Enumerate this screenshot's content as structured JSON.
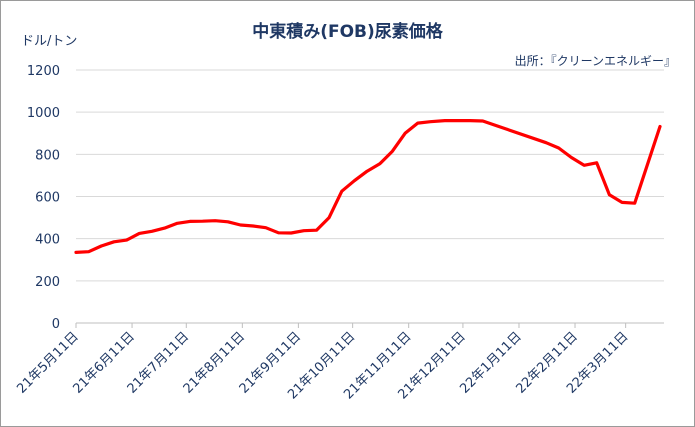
{
  "chart_data": {
    "type": "line",
    "title": "中東積み(FOB)尿素価格",
    "y_unit": "ドル/トン",
    "source": "出所：『クリーンエネルギー』",
    "ylim": [
      0,
      1200
    ],
    "yticks": [
      0,
      200,
      400,
      600,
      800,
      1000,
      1200
    ],
    "xticks": [
      "21年5月11日",
      "21年6月11日",
      "21年7月11日",
      "21年8月11日",
      "21年9月11日",
      "21年10月11日",
      "21年11月11日",
      "21年12月11日",
      "22年1月11日",
      "22年2月11日",
      "22年3月11日"
    ],
    "grid": true,
    "legend": "none",
    "series": [
      {
        "color": "#ff0000",
        "points": [
          [
            "2021-05-11",
            335
          ],
          [
            "2021-05-18",
            338
          ],
          [
            "2021-05-25",
            365
          ],
          [
            "2021-06-01",
            385
          ],
          [
            "2021-06-08",
            393
          ],
          [
            "2021-06-15",
            425
          ],
          [
            "2021-06-22",
            435
          ],
          [
            "2021-06-29",
            450
          ],
          [
            "2021-07-06",
            473
          ],
          [
            "2021-07-13",
            482
          ],
          [
            "2021-07-20",
            483
          ],
          [
            "2021-07-27",
            485
          ],
          [
            "2021-08-03",
            480
          ],
          [
            "2021-08-10",
            465
          ],
          [
            "2021-08-17",
            460
          ],
          [
            "2021-08-24",
            452
          ],
          [
            "2021-08-31",
            428
          ],
          [
            "2021-09-07",
            427
          ],
          [
            "2021-09-14",
            438
          ],
          [
            "2021-09-21",
            440
          ],
          [
            "2021-09-28",
            500
          ],
          [
            "2021-10-05",
            625
          ],
          [
            "2021-10-12",
            675
          ],
          [
            "2021-10-19",
            720
          ],
          [
            "2021-10-26",
            755
          ],
          [
            "2021-11-02",
            815
          ],
          [
            "2021-11-09",
            900
          ],
          [
            "2021-11-16",
            948
          ],
          [
            "2021-11-23",
            955
          ],
          [
            "2021-12-01",
            960
          ],
          [
            "2021-12-08",
            960
          ],
          [
            "2021-12-15",
            960
          ],
          [
            "2021-12-22",
            958
          ],
          [
            "2022-01-26",
            855
          ],
          [
            "2022-02-02",
            830
          ],
          [
            "2022-02-09",
            785
          ],
          [
            "2022-02-16",
            748
          ],
          [
            "2022-02-23",
            760
          ],
          [
            "2022-03-02",
            608
          ],
          [
            "2022-03-09",
            572
          ],
          [
            "2022-03-16",
            568
          ],
          [
            "2022-03-30",
            932
          ]
        ]
      }
    ]
  }
}
